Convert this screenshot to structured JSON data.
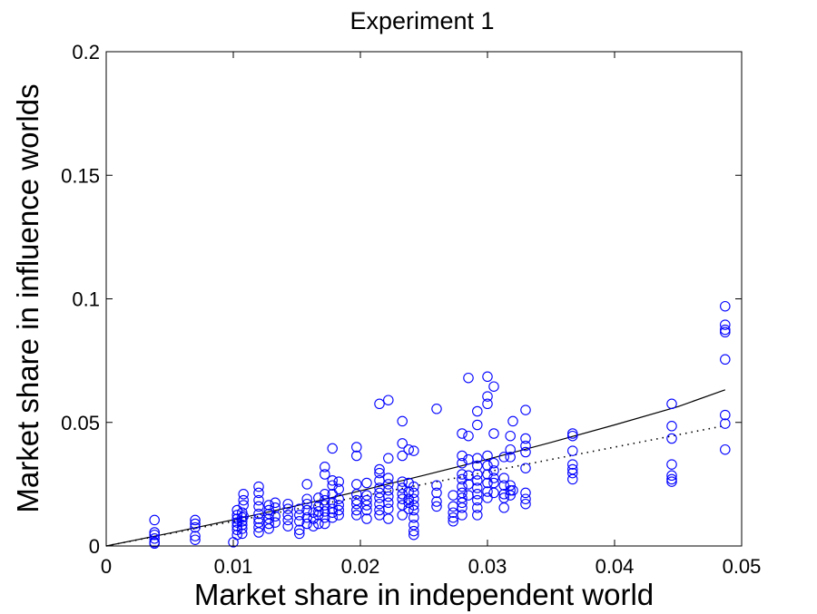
{
  "chart_data": {
    "type": "scatter",
    "title": "Experiment 1",
    "xlabel": "Market share in independent world",
    "ylabel": "Market share in influence worlds",
    "xlim": [
      0,
      0.05
    ],
    "ylim": [
      0,
      0.2
    ],
    "xticks": [
      {
        "value": 0,
        "label": "0"
      },
      {
        "value": 0.01,
        "label": "0.01"
      },
      {
        "value": 0.02,
        "label": "0.02"
      },
      {
        "value": 0.03,
        "label": "0.03"
      },
      {
        "value": 0.04,
        "label": "0.04"
      },
      {
        "value": 0.05,
        "label": "0.05"
      }
    ],
    "yticks": [
      {
        "value": 0,
        "label": "0"
      },
      {
        "value": 0.05,
        "label": "0.05"
      },
      {
        "value": 0.1,
        "label": "0.1"
      },
      {
        "value": 0.15,
        "label": "0.15"
      },
      {
        "value": 0.2,
        "label": "0.2"
      }
    ],
    "grid": false,
    "marker_color": "#0000ff",
    "points": [
      [
        0.0038,
        0.0105
      ],
      [
        0.0038,
        0.0055
      ],
      [
        0.0038,
        0.0045
      ],
      [
        0.0038,
        0.003
      ],
      [
        0.0038,
        0.0015
      ],
      [
        0.0038,
        0.001
      ],
      [
        0.007,
        0.0105
      ],
      [
        0.007,
        0.009
      ],
      [
        0.007,
        0.0075
      ],
      [
        0.007,
        0.004
      ],
      [
        0.007,
        0.0025
      ],
      [
        0.0103,
        0.0145
      ],
      [
        0.0103,
        0.0125
      ],
      [
        0.0103,
        0.011
      ],
      [
        0.0103,
        0.0095
      ],
      [
        0.0103,
        0.008
      ],
      [
        0.0103,
        0.0065
      ],
      [
        0.0103,
        0.0045
      ],
      [
        0.01,
        0.0015
      ],
      [
        0.0107,
        0.0135
      ],
      [
        0.0107,
        0.0115
      ],
      [
        0.0107,
        0.01
      ],
      [
        0.0107,
        0.0085
      ],
      [
        0.0107,
        0.007
      ],
      [
        0.0107,
        0.005
      ],
      [
        0.0108,
        0.021
      ],
      [
        0.0108,
        0.0185
      ],
      [
        0.0108,
        0.0165
      ],
      [
        0.0108,
        0.012
      ],
      [
        0.012,
        0.024
      ],
      [
        0.012,
        0.0215
      ],
      [
        0.012,
        0.0185
      ],
      [
        0.012,
        0.016
      ],
      [
        0.012,
        0.013
      ],
      [
        0.012,
        0.011
      ],
      [
        0.012,
        0.0095
      ],
      [
        0.012,
        0.0075
      ],
      [
        0.012,
        0.0055
      ],
      [
        0.0128,
        0.0165
      ],
      [
        0.0128,
        0.0145
      ],
      [
        0.0128,
        0.013
      ],
      [
        0.0128,
        0.011
      ],
      [
        0.0128,
        0.009
      ],
      [
        0.0128,
        0.007
      ],
      [
        0.0133,
        0.0175
      ],
      [
        0.0133,
        0.0155
      ],
      [
        0.0133,
        0.012
      ],
      [
        0.0133,
        0.0095
      ],
      [
        0.0143,
        0.017
      ],
      [
        0.0143,
        0.015
      ],
      [
        0.0143,
        0.0125
      ],
      [
        0.0143,
        0.0105
      ],
      [
        0.0143,
        0.008
      ],
      [
        0.0152,
        0.015
      ],
      [
        0.0152,
        0.0125
      ],
      [
        0.0152,
        0.01
      ],
      [
        0.0152,
        0.0065
      ],
      [
        0.0152,
        0.005
      ],
      [
        0.0158,
        0.025
      ],
      [
        0.0158,
        0.019
      ],
      [
        0.0158,
        0.017
      ],
      [
        0.0158,
        0.0145
      ],
      [
        0.0158,
        0.0115
      ],
      [
        0.0158,
        0.009
      ],
      [
        0.0163,
        0.0135
      ],
      [
        0.0163,
        0.011
      ],
      [
        0.0163,
        0.008
      ],
      [
        0.0167,
        0.0195
      ],
      [
        0.0167,
        0.016
      ],
      [
        0.0167,
        0.014
      ],
      [
        0.0167,
        0.0125
      ],
      [
        0.0167,
        0.009
      ],
      [
        0.0172,
        0.032
      ],
      [
        0.0172,
        0.029
      ],
      [
        0.0172,
        0.021
      ],
      [
        0.0172,
        0.0185
      ],
      [
        0.0172,
        0.0165
      ],
      [
        0.0172,
        0.014
      ],
      [
        0.0172,
        0.0115
      ],
      [
        0.0172,
        0.009
      ],
      [
        0.0178,
        0.0395
      ],
      [
        0.0178,
        0.0265
      ],
      [
        0.0178,
        0.0245
      ],
      [
        0.0178,
        0.021
      ],
      [
        0.0178,
        0.0175
      ],
      [
        0.0178,
        0.015
      ],
      [
        0.0178,
        0.0135
      ],
      [
        0.0178,
        0.0115
      ],
      [
        0.0183,
        0.026
      ],
      [
        0.0183,
        0.023
      ],
      [
        0.0183,
        0.019
      ],
      [
        0.0183,
        0.0165
      ],
      [
        0.0183,
        0.0145
      ],
      [
        0.0183,
        0.0125
      ],
      [
        0.0197,
        0.04
      ],
      [
        0.0197,
        0.0365
      ],
      [
        0.0197,
        0.025
      ],
      [
        0.0197,
        0.021
      ],
      [
        0.0197,
        0.0185
      ],
      [
        0.0197,
        0.017
      ],
      [
        0.0197,
        0.0145
      ],
      [
        0.0197,
        0.0125
      ],
      [
        0.0205,
        0.0255
      ],
      [
        0.0205,
        0.0205
      ],
      [
        0.0205,
        0.0185
      ],
      [
        0.0205,
        0.0165
      ],
      [
        0.0205,
        0.0145
      ],
      [
        0.0205,
        0.011
      ],
      [
        0.0215,
        0.0575
      ],
      [
        0.0215,
        0.031
      ],
      [
        0.0215,
        0.0295
      ],
      [
        0.0215,
        0.0265
      ],
      [
        0.0215,
        0.0235
      ],
      [
        0.0215,
        0.0215
      ],
      [
        0.0215,
        0.0195
      ],
      [
        0.0215,
        0.017
      ],
      [
        0.0215,
        0.0145
      ],
      [
        0.0215,
        0.0125
      ],
      [
        0.0222,
        0.059
      ],
      [
        0.0222,
        0.0355
      ],
      [
        0.0222,
        0.0275
      ],
      [
        0.0222,
        0.025
      ],
      [
        0.0222,
        0.0225
      ],
      [
        0.0222,
        0.02
      ],
      [
        0.0222,
        0.0175
      ],
      [
        0.0222,
        0.015
      ],
      [
        0.0222,
        0.011
      ],
      [
        0.0233,
        0.0505
      ],
      [
        0.0233,
        0.0415
      ],
      [
        0.0233,
        0.0365
      ],
      [
        0.0233,
        0.026
      ],
      [
        0.0233,
        0.0235
      ],
      [
        0.0233,
        0.021
      ],
      [
        0.0233,
        0.019
      ],
      [
        0.0233,
        0.0165
      ],
      [
        0.0233,
        0.0125
      ],
      [
        0.0238,
        0.039
      ],
      [
        0.0238,
        0.0255
      ],
      [
        0.0238,
        0.022
      ],
      [
        0.0238,
        0.019
      ],
      [
        0.0238,
        0.0175
      ],
      [
        0.0238,
        0.015
      ],
      [
        0.0242,
        0.0385
      ],
      [
        0.0242,
        0.024
      ],
      [
        0.0242,
        0.0215
      ],
      [
        0.0242,
        0.019
      ],
      [
        0.0242,
        0.0165
      ],
      [
        0.0242,
        0.0145
      ],
      [
        0.0242,
        0.0115
      ],
      [
        0.0242,
        0.0085
      ],
      [
        0.0242,
        0.006
      ],
      [
        0.0242,
        0.0045
      ],
      [
        0.026,
        0.0555
      ],
      [
        0.026,
        0.0245
      ],
      [
        0.026,
        0.0215
      ],
      [
        0.026,
        0.018
      ],
      [
        0.026,
        0.016
      ],
      [
        0.0273,
        0.0205
      ],
      [
        0.0273,
        0.016
      ],
      [
        0.0273,
        0.0135
      ],
      [
        0.0273,
        0.0115
      ],
      [
        0.0273,
        0.01
      ],
      [
        0.028,
        0.0455
      ],
      [
        0.028,
        0.0365
      ],
      [
        0.028,
        0.0335
      ],
      [
        0.028,
        0.029
      ],
      [
        0.028,
        0.027
      ],
      [
        0.028,
        0.024
      ],
      [
        0.028,
        0.0215
      ],
      [
        0.028,
        0.0195
      ],
      [
        0.028,
        0.0175
      ],
      [
        0.028,
        0.0155
      ],
      [
        0.028,
        0.0125
      ],
      [
        0.0285,
        0.068
      ],
      [
        0.0285,
        0.0445
      ],
      [
        0.0285,
        0.035
      ],
      [
        0.0285,
        0.0285
      ],
      [
        0.0285,
        0.025
      ],
      [
        0.0285,
        0.0205
      ],
      [
        0.0292,
        0.0545
      ],
      [
        0.0292,
        0.049
      ],
      [
        0.0292,
        0.0355
      ],
      [
        0.0292,
        0.0325
      ],
      [
        0.0292,
        0.029
      ],
      [
        0.0292,
        0.0265
      ],
      [
        0.0292,
        0.0235
      ],
      [
        0.0292,
        0.021
      ],
      [
        0.0292,
        0.0185
      ],
      [
        0.0292,
        0.0155
      ],
      [
        0.0292,
        0.0125
      ],
      [
        0.03,
        0.0685
      ],
      [
        0.03,
        0.0605
      ],
      [
        0.03,
        0.0575
      ],
      [
        0.03,
        0.0365
      ],
      [
        0.03,
        0.0325
      ],
      [
        0.03,
        0.029
      ],
      [
        0.03,
        0.0255
      ],
      [
        0.03,
        0.022
      ],
      [
        0.03,
        0.0195
      ],
      [
        0.0305,
        0.0645
      ],
      [
        0.0305,
        0.0455
      ],
      [
        0.0305,
        0.0335
      ],
      [
        0.0305,
        0.0305
      ],
      [
        0.0305,
        0.0275
      ],
      [
        0.0305,
        0.0255
      ],
      [
        0.0305,
        0.0215
      ],
      [
        0.0313,
        0.036
      ],
      [
        0.0313,
        0.0275
      ],
      [
        0.0313,
        0.0245
      ],
      [
        0.0313,
        0.021
      ],
      [
        0.0313,
        0.0195
      ],
      [
        0.0313,
        0.0155
      ],
      [
        0.0318,
        0.0445
      ],
      [
        0.0318,
        0.039
      ],
      [
        0.0318,
        0.036
      ],
      [
        0.0318,
        0.0245
      ],
      [
        0.0318,
        0.0225
      ],
      [
        0.0318,
        0.0205
      ],
      [
        0.032,
        0.0505
      ],
      [
        0.032,
        0.0225
      ],
      [
        0.033,
        0.055
      ],
      [
        0.033,
        0.0435
      ],
      [
        0.033,
        0.0405
      ],
      [
        0.033,
        0.038
      ],
      [
        0.033,
        0.0315
      ],
      [
        0.033,
        0.0215
      ],
      [
        0.033,
        0.019
      ],
      [
        0.033,
        0.017
      ],
      [
        0.0367,
        0.0455
      ],
      [
        0.0367,
        0.0445
      ],
      [
        0.0367,
        0.0385
      ],
      [
        0.0367,
        0.033
      ],
      [
        0.0367,
        0.031
      ],
      [
        0.0367,
        0.0295
      ],
      [
        0.0367,
        0.027
      ],
      [
        0.0445,
        0.0575
      ],
      [
        0.0445,
        0.0485
      ],
      [
        0.0445,
        0.0435
      ],
      [
        0.0445,
        0.033
      ],
      [
        0.0445,
        0.0285
      ],
      [
        0.0445,
        0.027
      ],
      [
        0.0445,
        0.026
      ],
      [
        0.0487,
        0.097
      ],
      [
        0.0487,
        0.0895
      ],
      [
        0.0487,
        0.0875
      ],
      [
        0.0487,
        0.0865
      ],
      [
        0.0487,
        0.0755
      ],
      [
        0.0487,
        0.053
      ],
      [
        0.0487,
        0.0495
      ],
      [
        0.0487,
        0.039
      ]
    ],
    "lines": [
      {
        "style": "solid",
        "color": "#000000",
        "x": [
          0,
          0.005,
          0.01,
          0.015,
          0.02,
          0.025,
          0.03,
          0.035,
          0.04,
          0.045,
          0.0487
        ],
        "y": [
          0,
          0.0052,
          0.0106,
          0.0163,
          0.0223,
          0.0286,
          0.0351,
          0.0419,
          0.049,
          0.0564,
          0.0632
        ]
      },
      {
        "style": "dotted",
        "color": "#000000",
        "x": [
          0,
          0.0487
        ],
        "y": [
          0,
          0.0487
        ]
      }
    ]
  }
}
